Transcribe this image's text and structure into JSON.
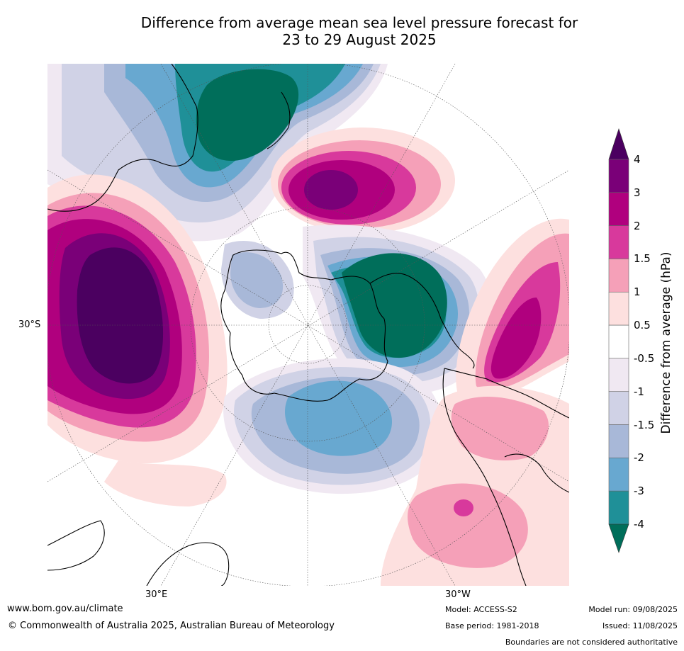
{
  "title_line1": "Difference from average mean sea level pressure forecast for",
  "title_line2": "23 to 29 August 2025",
  "labels": {
    "lat_30s": "30°S",
    "lon_30e": "30°E",
    "lon_30w": "30°W"
  },
  "colorbar": {
    "title": "Difference from average (hPa)",
    "ticks": [
      "4",
      "3",
      "2",
      "1.5",
      "1",
      "0.5",
      "-0.5",
      "-1",
      "-1.5",
      "-2",
      "-3",
      "-4"
    ],
    "colors": [
      "#4b0060",
      "#7a0078",
      "#b0007e",
      "#d8399c",
      "#f5a0b8",
      "#fde0df",
      "#ffffff",
      "#f0e8f2",
      "#d0d2e6",
      "#a8b8d8",
      "#68a8d0",
      "#1f9098",
      "#006e5a"
    ]
  },
  "footer": {
    "website": "www.bom.gov.au/climate",
    "copyright": "© Commonwealth of Australia 2025, Australian Bureau of Meteorology",
    "model": "Model: ACCESS-S2",
    "base_period": "Base period: 1981-2018",
    "model_run": "Model run: 09/08/2025",
    "issued": "Issued: 11/08/2025",
    "disclaimer": "Boundaries are not considered authoritative"
  }
}
